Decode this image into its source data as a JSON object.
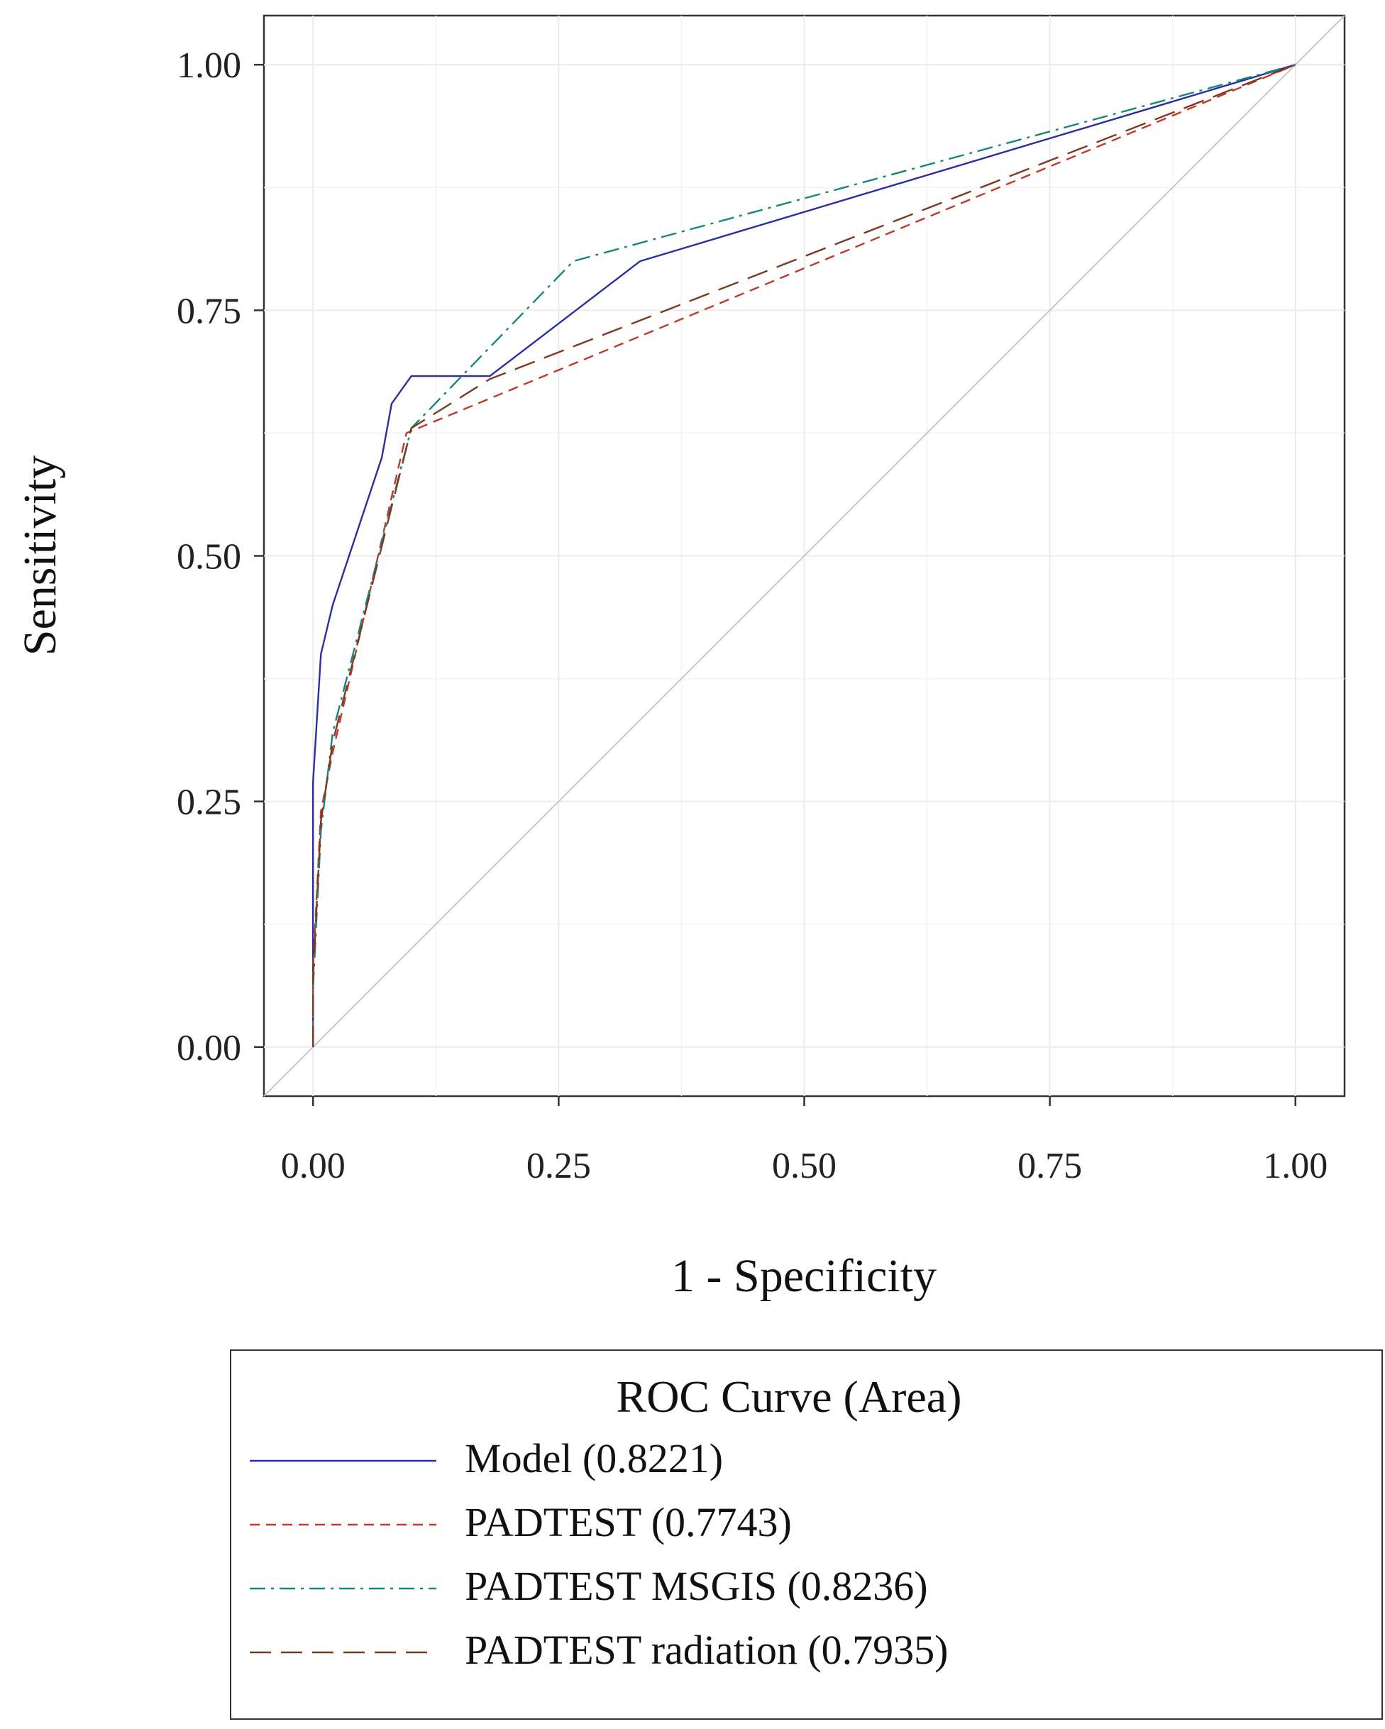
{
  "chart_data": {
    "type": "line",
    "xlabel": "1 - Specificity",
    "ylabel": "Sensitivity",
    "xlim": [
      -0.05,
      1.05
    ],
    "ylim": [
      -0.05,
      1.05
    ],
    "xticks": [
      0,
      0.25,
      0.5,
      0.75,
      1
    ],
    "yticks": [
      0,
      0.25,
      0.5,
      0.75,
      1
    ],
    "xtick_labels": [
      "0.00",
      "0.25",
      "0.50",
      "0.75",
      "1.00"
    ],
    "ytick_labels": [
      "0.00",
      "0.25",
      "0.50",
      "0.75",
      "1.00"
    ],
    "grid": true,
    "reference_line": {
      "x": [
        0,
        1
      ],
      "y": [
        0,
        1
      ],
      "color": "#c8c8c8"
    },
    "legend": {
      "title": "ROC Curve (Area)",
      "placement": "bottom"
    },
    "series": [
      {
        "name": "Model",
        "area": "(0.8221)",
        "color": "#2a2fa0",
        "dash": "solid",
        "x": [
          0,
          0,
          0.008,
          0.02,
          0.07,
          0.08,
          0.1,
          0.18,
          0.333,
          1
        ],
        "y": [
          0,
          0.27,
          0.4,
          0.45,
          0.6,
          0.655,
          0.683,
          0.683,
          0.8,
          1
        ]
      },
      {
        "name": "PADTEST",
        "area": "(0.7743)",
        "color": "#c0392b",
        "dash": "dashed",
        "x": [
          0,
          0,
          0.008,
          0.02,
          0.095,
          1
        ],
        "y": [
          0,
          0.08,
          0.24,
          0.3,
          0.625,
          1
        ]
      },
      {
        "name": "PADTEST  MSGIS",
        "area": "(0.8236)",
        "color": "#16877a",
        "dash": "dashdot",
        "x": [
          0,
          0,
          0.008,
          0.02,
          0.1,
          0.265,
          1
        ],
        "y": [
          0,
          0.06,
          0.22,
          0.32,
          0.63,
          0.8,
          1
        ]
      },
      {
        "name": "PADTEST radiation",
        "area": "(0.7935)",
        "color": "#7a3b22",
        "dash": "longdash",
        "x": [
          0,
          0,
          0.008,
          0.02,
          0.1,
          0.18,
          1
        ],
        "y": [
          0,
          0.07,
          0.23,
          0.31,
          0.63,
          0.68,
          1
        ]
      }
    ]
  }
}
